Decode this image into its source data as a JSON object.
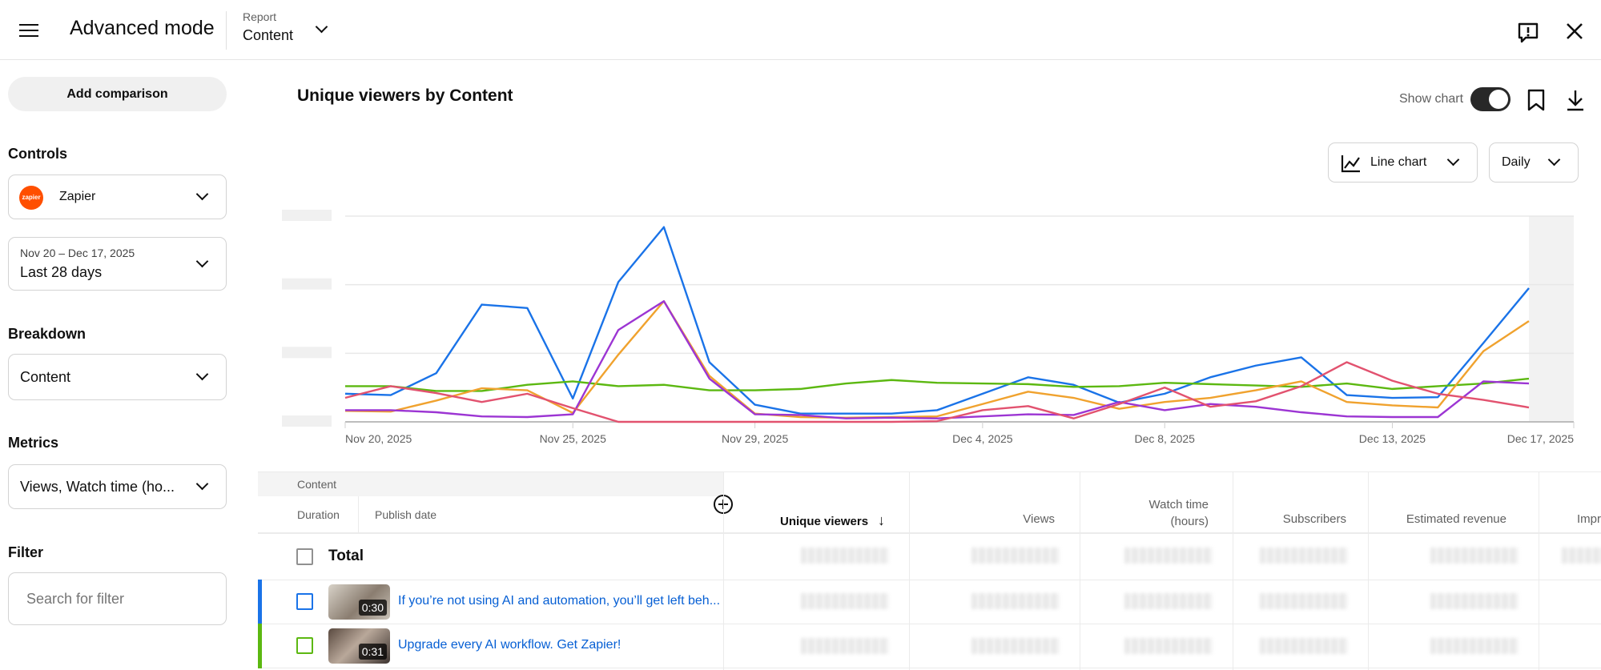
{
  "header": {
    "title": "Advanced mode",
    "report_label": "Report",
    "report_value": "Content",
    "icons": [
      "menu-icon",
      "chevron-down-icon",
      "feedback-icon",
      "close-icon"
    ]
  },
  "sidebar": {
    "add_comparison": "Add comparison",
    "controls_label": "Controls",
    "channel": "Zapier",
    "channel_logo": "zapier",
    "date_range": "Nov 20 – Dec 17, 2025",
    "date_preset": "Last 28 days",
    "breakdown_label": "Breakdown",
    "breakdown_value": "Content",
    "metrics_label": "Metrics",
    "metrics_value": "Views, Watch time (ho...",
    "filter_label": "Filter",
    "filter_placeholder": "Search for filter"
  },
  "chart_panel": {
    "title": "Unique viewers by Content",
    "show_chart_label": "Show chart",
    "show_chart_on": true,
    "chart_type": "Line chart",
    "interval": "Daily"
  },
  "chart_data": {
    "type": "line",
    "title": "Unique viewers by Content",
    "x_tick_labels": [
      "Nov 20, 2025",
      "Nov 25, 2025",
      "Nov 29, 2025",
      "Dec 4, 2025",
      "Dec 8, 2025",
      "Dec 13, 2025",
      "Dec 17, 2025"
    ],
    "x_start": "Nov 20, 2025",
    "x_end": "Dec 17, 2025",
    "interval": "daily",
    "y_tick_labels_obscured": true,
    "ylim": [
      0,
      3
    ],
    "grid": true,
    "legend": "none",
    "series": [
      {
        "color": "#1a73e8",
        "values": [
          0.41,
          0.39,
          0.71,
          1.71,
          1.66,
          0.34,
          2.04,
          2.84,
          0.87,
          0.25,
          0.12,
          0.12,
          0.12,
          0.17,
          0.41,
          0.65,
          0.54,
          0.28,
          0.41,
          0.65,
          0.82,
          0.94,
          0.39,
          0.35,
          0.36,
          1.15,
          1.95
        ]
      },
      {
        "color": "#5cb811",
        "values": [
          0.52,
          0.52,
          0.45,
          0.45,
          0.54,
          0.59,
          0.52,
          0.54,
          0.46,
          0.46,
          0.48,
          0.56,
          0.61,
          0.57,
          0.56,
          0.55,
          0.51,
          0.52,
          0.57,
          0.55,
          0.53,
          0.51,
          0.56,
          0.48,
          0.52,
          0.56,
          0.63
        ]
      },
      {
        "color": "#f0a22e",
        "values": [
          0.16,
          0.15,
          0.31,
          0.49,
          0.46,
          0.13,
          0.98,
          1.76,
          0.67,
          0.12,
          0.07,
          0.06,
          0.07,
          0.08,
          0.26,
          0.44,
          0.35,
          0.19,
          0.29,
          0.35,
          0.46,
          0.59,
          0.29,
          0.24,
          0.21,
          1.03,
          1.47
        ]
      },
      {
        "color": "#9c35d3",
        "values": [
          0.17,
          0.17,
          0.14,
          0.08,
          0.07,
          0.11,
          1.34,
          1.76,
          0.63,
          0.11,
          0.1,
          0.05,
          0.06,
          0.05,
          0.08,
          0.11,
          0.1,
          0.29,
          0.17,
          0.26,
          0.22,
          0.14,
          0.08,
          0.07,
          0.07,
          0.59,
          0.56
        ]
      },
      {
        "color": "#e2526f",
        "values": [
          0.35,
          0.52,
          0.42,
          0.29,
          0.41,
          0.2,
          0,
          0,
          0,
          0,
          0,
          0,
          0,
          0.01,
          0.17,
          0.23,
          0.05,
          0.26,
          0.5,
          0.22,
          0.3,
          0.52,
          0.87,
          0.6,
          0.41,
          0.32,
          0.21
        ]
      }
    ]
  },
  "table": {
    "group_header": "Content",
    "sub_headers": [
      "Duration",
      "Publish date"
    ],
    "columns": [
      "Unique viewers",
      "Views",
      "Watch time (hours)",
      "Subscribers",
      "Estimated revenue",
      "Impr"
    ],
    "watch_time_line1": "Watch time",
    "watch_time_line2": "(hours)",
    "sort_column": "Unique viewers",
    "sort_direction": "descending",
    "total_label": "Total",
    "rows": [
      {
        "title": "If you’re not using AI and automation, you’ll get left beh...",
        "duration": "0:30",
        "color": "#1a73e8"
      },
      {
        "title": "Upgrade every AI workflow. Get Zapier!",
        "duration": "0:31",
        "color": "#5cb811"
      }
    ],
    "values_obscured": true
  }
}
